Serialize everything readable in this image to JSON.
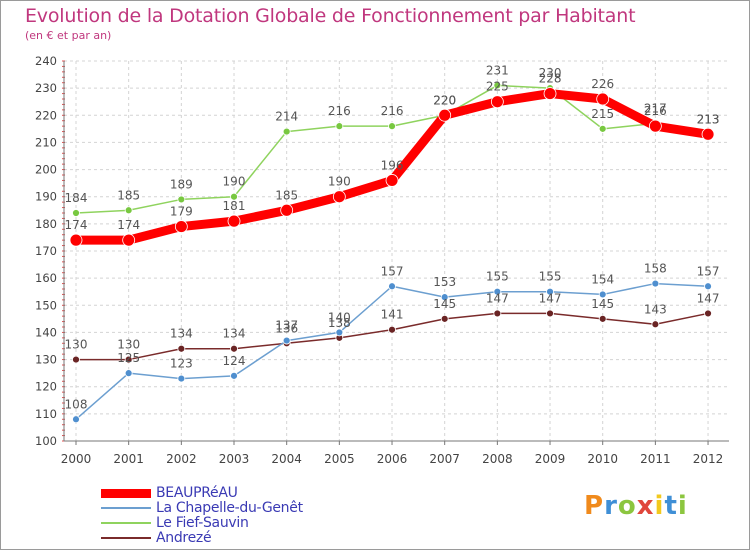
{
  "header": {
    "title": "Evolution de la Dotation Globale de Fonctionnement par Habitant",
    "subtitle": "(en € et par an)"
  },
  "logo": {
    "text": "Proxiti",
    "colors": [
      "#f08a1c",
      "#3f8fd6",
      "#8cc63f",
      "#e0463c",
      "#f2c91e",
      "#3f8fd6",
      "#8cc63f"
    ]
  },
  "chart_data": {
    "type": "line",
    "title": "Evolution de la Dotation Globale de Fonctionnement par Habitant",
    "subtitle": "(en € et par an)",
    "xlabel": "",
    "ylabel": "",
    "ylim": [
      100,
      240
    ],
    "yticks": [
      100,
      110,
      120,
      130,
      140,
      150,
      160,
      170,
      180,
      190,
      200,
      210,
      220,
      230,
      240
    ],
    "grid": true,
    "legend_position": "bottom-left",
    "categories": [
      "2000",
      "2001",
      "2002",
      "2003",
      "2004",
      "2005",
      "2006",
      "2007",
      "2008",
      "2009",
      "2010",
      "2011",
      "2012"
    ],
    "series": [
      {
        "name": "BEAUPRéAU",
        "color": "#ff0000",
        "values": [
          174,
          174,
          179,
          181,
          185,
          190,
          196,
          220,
          225,
          228,
          226,
          216,
          213
        ]
      },
      {
        "name": "La Chapelle-du-Genêt",
        "color": "#6c9fd0",
        "values": [
          108,
          125,
          123,
          124,
          137,
          140,
          157,
          153,
          155,
          155,
          154,
          158,
          157
        ]
      },
      {
        "name": "Le Fief-Sauvin",
        "color": "#8fd35e",
        "values": [
          184,
          185,
          189,
          190,
          214,
          216,
          216,
          220,
          231,
          230,
          215,
          217,
          213
        ]
      },
      {
        "name": "Andrezé",
        "color": "#7a2b2b",
        "values": [
          130,
          130,
          134,
          134,
          136,
          138,
          141,
          145,
          147,
          147,
          145,
          143,
          147
        ]
      }
    ]
  }
}
